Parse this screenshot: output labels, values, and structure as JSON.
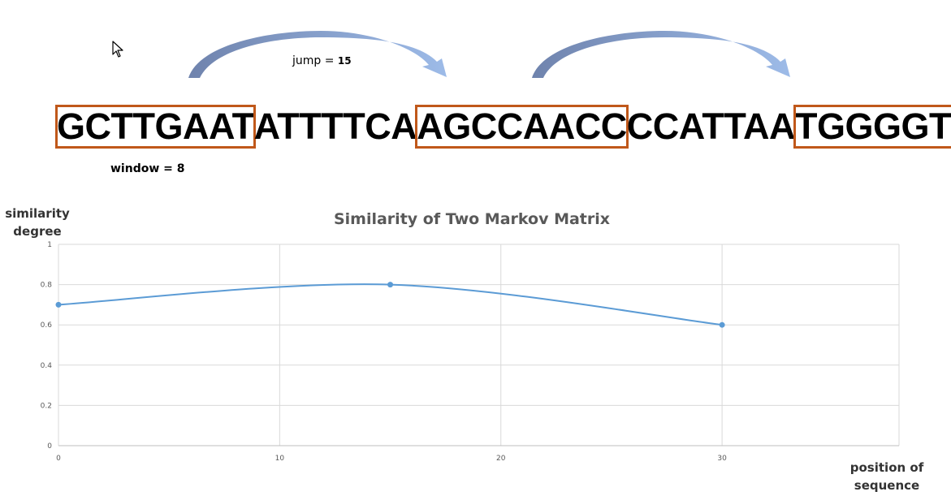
{
  "sequence": {
    "segments": [
      {
        "text": "GCTTGAAT",
        "window": true
      },
      {
        "text": "ATTTTCA",
        "window": false
      },
      {
        "text": "AGCCAACC",
        "window": true
      },
      {
        "text": "CCATTAA",
        "window": false
      },
      {
        "text": "TGGGGTTA",
        "window": true
      }
    ],
    "jump_word": "jump = ",
    "jump_value": "15",
    "window_label": "window = 8"
  },
  "colors": {
    "window_box": "#c0581a",
    "arrow_start": "#6f83ad",
    "arrow_end": "#9dbbe8",
    "line": "#5b9bd5",
    "grid": "#d9d9d9"
  },
  "icons": {
    "cursor": "mouse-pointer-icon"
  },
  "chart_data": {
    "type": "line",
    "title": "Similarity of Two Markov Matrix",
    "ylabel_line1": "similarity",
    "ylabel_line2": "degree",
    "xlabel_line1": "position of",
    "xlabel_line2": "sequence",
    "x": [
      0,
      15,
      30
    ],
    "y": [
      0.7,
      0.8,
      0.6
    ],
    "xlim": [
      0,
      38
    ],
    "ylim": [
      0,
      1
    ],
    "xticks": [
      "0",
      "10",
      "20",
      "30"
    ],
    "yticks": [
      "0",
      "0.2",
      "0.4",
      "0.6",
      "0.8",
      "1"
    ],
    "smooth": true,
    "grid": true,
    "legend": "none"
  }
}
